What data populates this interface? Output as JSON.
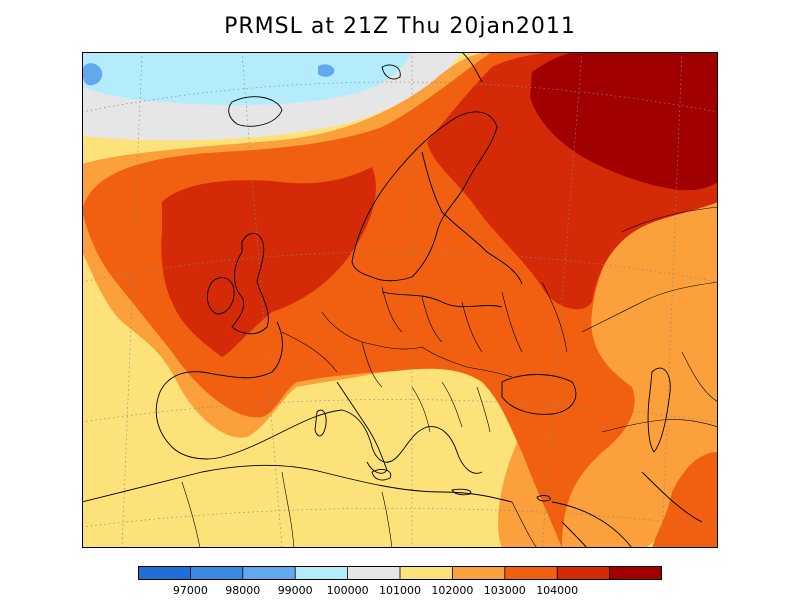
{
  "title": "PRMSL at 21Z Thu 20jan2011",
  "legend": {
    "colors": [
      "#1e6fd9",
      "#3a8ae6",
      "#62a8ee",
      "#b4ecfb",
      "#e6e6e6",
      "#fde27a",
      "#fba03a",
      "#f06010",
      "#d42a08",
      "#a00000"
    ],
    "labels": [
      "97000",
      "98000",
      "99000",
      "100000",
      "101000",
      "102000",
      "103000",
      "104000"
    ]
  },
  "map": {
    "variable": "PRMSL",
    "levels": [
      97000,
      98000,
      99000,
      100000,
      101000,
      102000,
      103000,
      104000
    ]
  }
}
